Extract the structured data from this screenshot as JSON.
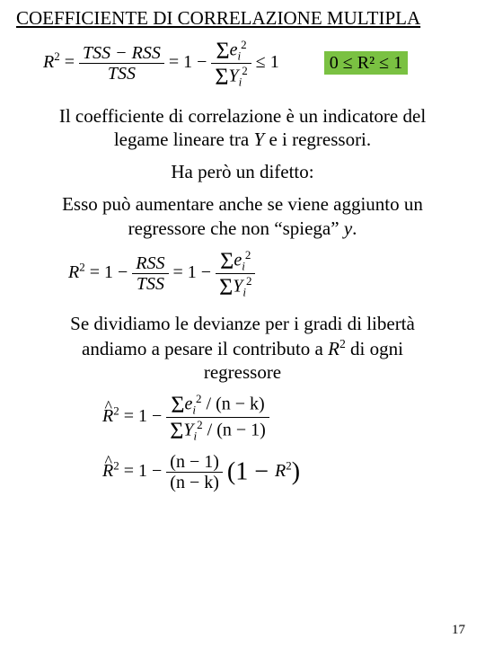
{
  "title": "COEFFICIENTE DI CORRELAZIONE MULTIPLA",
  "page_number": "17",
  "colors": {
    "highlight_bg": "#7ac142",
    "text": "#000000",
    "background": "#ffffff"
  },
  "fonts": {
    "body_family": "Times New Roman",
    "title_size_pt": 21,
    "body_size_pt": 21,
    "formula_size_pt": 20
  },
  "formulas": {
    "r2_def": {
      "lhs": "R",
      "lhs_sup": "2",
      "eq1_num": "TSS − RSS",
      "eq1_den": "TSS",
      "mid": "= 1 −",
      "eq2_num_sigma": "Σ",
      "eq2_num_var": "e",
      "eq2_num_sub": "i",
      "eq2_num_sup": "2",
      "eq2_den_sigma": "Σ",
      "eq2_den_var": "Y",
      "eq2_den_sub": "i",
      "eq2_den_sup": "2",
      "tail": "≤ 1"
    },
    "bounds": "0 ≤ R² ≤ 1",
    "r2_repeat": {
      "lhs": "R",
      "lhs_sup": "2",
      "mid1": "= 1 −",
      "f1_num": "RSS",
      "f1_den": "TSS",
      "mid2": "= 1 −",
      "f2_num_sigma": "Σ",
      "f2_num_var": "e",
      "f2_num_sub": "i",
      "f2_num_sup": "2",
      "f2_den_sigma": "Σ",
      "f2_den_var": "Y",
      "f2_den_sub": "i",
      "f2_den_sup": "2"
    },
    "r2_adj1": {
      "lhs": "R",
      "lhs_sup": "2",
      "mid": "= 1 −",
      "num_sigma": "Σ",
      "num_var": "e",
      "num_sub": "i",
      "num_sup": "2",
      "num_div": "(n − k)",
      "den_sigma": "Σ",
      "den_var": "Y",
      "den_sub": "i",
      "den_sup": "2",
      "den_div": "(n − 1)"
    },
    "r2_adj2": {
      "lhs": "R",
      "lhs_sup": "2",
      "mid": "= 1 −",
      "f_num": "(n − 1)",
      "f_den": "(n − k)",
      "tail_open": "(1 − ",
      "tail_var": "R",
      "tail_sup": "2",
      "tail_close": ")"
    }
  },
  "paragraphs": {
    "p1a": "Il coefficiente di correlazione è un indicatore del legame lineare tra ",
    "p1_Y": "Y",
    "p1b": " e i regressori.",
    "p2": "Ha però un difetto:",
    "p3a": "Esso può aumentare anche se viene aggiunto un regressore che non  “spiega”  ",
    "p3_y": "y",
    "p3b": ".",
    "p4a": "Se dividiamo le devianze per i gradi di libertà andiamo a pesare il contributo a ",
    "p4_R": "R",
    "p4_sup": "2",
    "p4b": " di ogni regressore"
  }
}
